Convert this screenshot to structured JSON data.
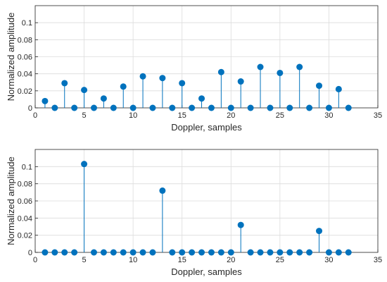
{
  "chart_data": [
    {
      "type": "stem",
      "title": "",
      "xlabel": "Doppler, samples",
      "ylabel": "Normalized amplitude",
      "xlim": [
        0,
        35
      ],
      "ylim": [
        0,
        0.12
      ],
      "xticks": [
        0,
        5,
        10,
        15,
        20,
        25,
        30,
        35
      ],
      "yticks": [
        0,
        0.02,
        0.04,
        0.06,
        0.08,
        0.1
      ],
      "ytick_labels": [
        "0",
        "0.02",
        "0.04",
        "0.06",
        "0.08",
        "0.1"
      ],
      "grid": true,
      "color": "#0072BD",
      "series": [
        {
          "x": [
            1,
            2,
            3,
            4,
            5,
            6,
            7,
            8,
            9,
            10,
            11,
            12,
            13,
            14,
            15,
            16,
            17,
            18,
            19,
            20,
            21,
            22,
            23,
            24,
            25,
            26,
            27,
            28,
            29,
            30,
            31,
            32
          ],
          "values": [
            0.008,
            0,
            0.029,
            0,
            0.021,
            0,
            0.011,
            0,
            0.025,
            0,
            0.037,
            0,
            0.035,
            0,
            0.029,
            0,
            0.011,
            0,
            0.042,
            0,
            0.031,
            0,
            0.048,
            0,
            0.041,
            0,
            0.048,
            0,
            0.026,
            0,
            0.022,
            0
          ]
        }
      ]
    },
    {
      "type": "stem",
      "title": "",
      "xlabel": "Doppler, samples",
      "ylabel": "Normalized amplitude",
      "xlim": [
        0,
        35
      ],
      "ylim": [
        0,
        0.12
      ],
      "xticks": [
        0,
        5,
        10,
        15,
        20,
        25,
        30,
        35
      ],
      "yticks": [
        0,
        0.02,
        0.04,
        0.06,
        0.08,
        0.1
      ],
      "ytick_labels": [
        "0",
        "0.02",
        "0.04",
        "0.06",
        "0.08",
        "0.1"
      ],
      "grid": true,
      "color": "#0072BD",
      "series": [
        {
          "x": [
            1,
            2,
            3,
            4,
            5,
            6,
            7,
            8,
            9,
            10,
            11,
            12,
            13,
            14,
            15,
            16,
            17,
            18,
            19,
            20,
            21,
            22,
            23,
            24,
            25,
            26,
            27,
            28,
            29,
            30,
            31,
            32
          ],
          "values": [
            0,
            0,
            0,
            0,
            0.103,
            0,
            0,
            0,
            0,
            0,
            0,
            0,
            0.072,
            0,
            0,
            0,
            0,
            0,
            0,
            0,
            0.032,
            0,
            0,
            0,
            0,
            0,
            0,
            0,
            0.025,
            0,
            0,
            0
          ]
        }
      ]
    }
  ]
}
